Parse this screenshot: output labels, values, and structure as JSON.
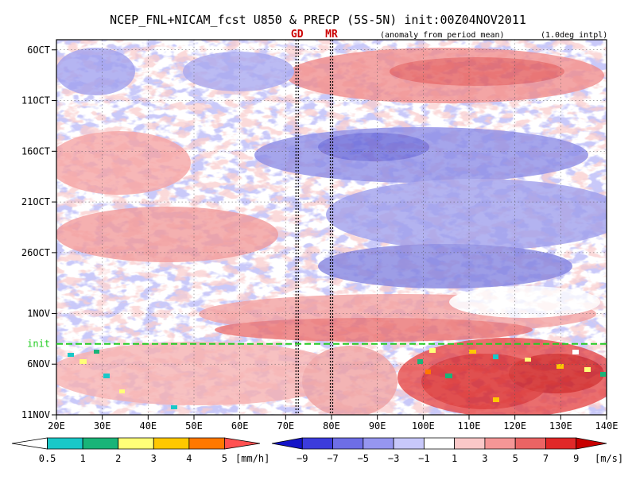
{
  "chart_data": {
    "type": "heatmap",
    "title": "NCEP_FNL+NICAM_fcst U850 & PRECP (5S-5N) init:00Z04NOV2011",
    "subtitle_left": "(anomaly from period mean)",
    "subtitle_right": "(1.0deg intpl)",
    "x_axis": {
      "quantity": "longitude",
      "range_deg": [
        20,
        140
      ],
      "ticks": [
        20,
        30,
        40,
        50,
        60,
        70,
        80,
        90,
        100,
        110,
        120,
        130,
        140
      ],
      "tick_labels": [
        "20E",
        "30E",
        "40E",
        "50E",
        "60E",
        "70E",
        "80E",
        "90E",
        "100E",
        "110E",
        "120E",
        "130E",
        "140E"
      ]
    },
    "y_axis": {
      "quantity": "date",
      "range": [
        "2011-10-05",
        "2011-11-11"
      ],
      "ticks": [
        "2011-10-06",
        "2011-10-11",
        "2011-10-16",
        "2011-10-21",
        "2011-10-26",
        "2011-11-01",
        "2011-11-06",
        "2011-11-11"
      ],
      "tick_labels": [
        "6OCT",
        "11OCT",
        "16OCT",
        "21OCT",
        "26OCT",
        "1NOV",
        "6NOV",
        "11NOV"
      ],
      "direction": "time increases downward"
    },
    "markers": [
      {
        "label": "GD",
        "lon": 72.5,
        "style": "dotted black vertical"
      },
      {
        "label": "MR",
        "lon": 80.0,
        "style": "dotted black vertical"
      }
    ],
    "init_line": {
      "label": "init",
      "date": "2011-11-04",
      "color": "#22cc22",
      "style": "dashed"
    },
    "precip_colorbar": {
      "unit": "[mm/h]",
      "levels": [
        0.5,
        1,
        2,
        3,
        4,
        5
      ],
      "labels": [
        "0.5",
        "1",
        "2",
        "3",
        "4",
        "5"
      ],
      "colors": [
        "#ffffff",
        "#19c8c8",
        "#19b478",
        "#ffff78",
        "#ffc800",
        "#ff7800",
        "#ff5050"
      ]
    },
    "u850_colorbar": {
      "unit": "[m/s]",
      "levels": [
        -9,
        -7,
        -5,
        -3,
        -1,
        1,
        3,
        5,
        7,
        9
      ],
      "labels": [
        "−9",
        "−7",
        "−5",
        "−3",
        "−1",
        "1",
        "3",
        "5",
        "7",
        "9"
      ],
      "colors": [
        "#1414c8",
        "#3c3cdc",
        "#6e6ee6",
        "#9696f0",
        "#c8c8fa",
        "#ffffff",
        "#fac8c8",
        "#f59696",
        "#eb6464",
        "#e12828",
        "#c80000"
      ]
    },
    "grid": true,
    "legend_placement": "bottom"
  },
  "colors": {
    "axis": "#000000",
    "init_line": "#22cc22",
    "marker_label": "#cc0000"
  }
}
